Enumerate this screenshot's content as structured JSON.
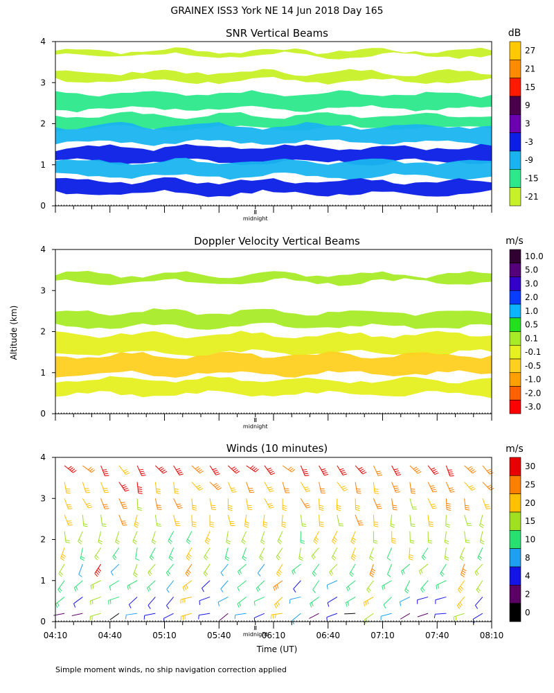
{
  "title": "GRAINEX ISS3 York NE  14 Jun 2018 Day 165",
  "footnote": "Simple moment winds, no ship navigation correction applied",
  "ylabel": "Altitude (km)",
  "xlabel": "Time (UT)",
  "midnight_label": "midnight",
  "chart_data": [
    {
      "type": "heatmap",
      "title": "SNR Vertical Beams",
      "unit": "dB",
      "ylim": [
        0,
        4
      ],
      "yticks": [
        "0",
        "1",
        "2",
        "3",
        "4"
      ],
      "x_range_hours": [
        4.1667,
        8.1667
      ],
      "colorbar": {
        "labels": [
          "27",
          "21",
          "15",
          "9",
          "3",
          "-3",
          "-9",
          "-15",
          "-21"
        ],
        "colors": [
          "#ffc800",
          "#ff8c00",
          "#ff1a00",
          "#4a004a",
          "#6a00b0",
          "#0a1ee6",
          "#19b4f0",
          "#2ce88a",
          "#c8f028"
        ]
      },
      "layers": [
        {
          "label": "-21",
          "alt_km": 3.72,
          "thick": 0.12
        },
        {
          "label": "-21",
          "alt_km": 3.15,
          "thick": 0.2
        },
        {
          "label": "-15",
          "alt_km": 2.55,
          "thick": 0.35
        },
        {
          "label": "-15",
          "alt_km": 2.05,
          "thick": 0.3
        },
        {
          "label": "-9",
          "alt_km": 1.75,
          "thick": 0.4
        },
        {
          "label": "-3",
          "alt_km": 1.25,
          "thick": 0.35
        },
        {
          "label": "-9",
          "alt_km": 0.9,
          "thick": 0.35
        },
        {
          "label": "-3",
          "alt_km": 0.45,
          "thick": 0.3
        }
      ]
    },
    {
      "type": "heatmap",
      "title": "Doppler Velocity Vertical Beams",
      "unit": "m/s",
      "ylim": [
        0,
        4
      ],
      "yticks": [
        "0",
        "1",
        "2",
        "3",
        "4"
      ],
      "x_range_hours": [
        4.1667,
        8.1667
      ],
      "colorbar": {
        "labels": [
          "10.0",
          "5.0",
          "3.0",
          "2.0",
          "1.0",
          "0.5",
          "0.1",
          "-0.1",
          "-0.5",
          "-1.0",
          "-2.0",
          "-3.0"
        ],
        "colors": [
          "#300030",
          "#55007a",
          "#3200c8",
          "#0a3cff",
          "#0ab4ff",
          "#22e01e",
          "#a8ec28",
          "#e6f020",
          "#ffd020",
          "#ffa000",
          "#ff6000",
          "#ff0000"
        ]
      },
      "layers": [
        {
          "label": "0.1",
          "alt_km": 3.3,
          "thick": 0.18
        },
        {
          "label": "0.1",
          "alt_km": 2.3,
          "thick": 0.35
        },
        {
          "label": "-0.1",
          "alt_km": 1.7,
          "thick": 0.45
        },
        {
          "label": "-0.5",
          "alt_km": 1.2,
          "thick": 0.45
        },
        {
          "label": "-0.1",
          "alt_km": 0.65,
          "thick": 0.35
        }
      ]
    },
    {
      "type": "scatter",
      "title": "Winds (10 minutes)",
      "unit": "m/s",
      "ylim": [
        0,
        4
      ],
      "yticks": [
        "0",
        "1",
        "2",
        "3",
        "4"
      ],
      "x_range_hours": [
        4.1667,
        8.1667
      ],
      "xticks": [
        "04:10",
        "04:40",
        "05:10",
        "05:40",
        "06:10",
        "06:40",
        "07:10",
        "07:40",
        "08:10"
      ],
      "colorbar": {
        "labels": [
          "30",
          "25",
          "20",
          "15",
          "10",
          "8",
          "4",
          "2",
          "0"
        ],
        "colors": [
          "#e60000",
          "#ff8000",
          "#ffc000",
          "#a0e020",
          "#28e070",
          "#1ea0f0",
          "#1414e6",
          "#5a0064",
          "#000000"
        ]
      },
      "profile_times_hours": [
        4.25,
        4.4167,
        4.5833,
        4.75,
        4.9167,
        5.0833,
        5.25,
        5.4167,
        5.5833,
        5.75,
        5.9167,
        6.0833,
        6.25,
        6.4167,
        6.5833,
        6.75,
        6.9167,
        7.0833,
        7.25,
        7.4167,
        7.5833,
        7.75,
        7.9167,
        8.0833
      ],
      "wind_levels_km": [
        0.2,
        0.6,
        1.0,
        1.4,
        1.8,
        2.2,
        2.6,
        3.0,
        3.4,
        3.8
      ]
    }
  ]
}
